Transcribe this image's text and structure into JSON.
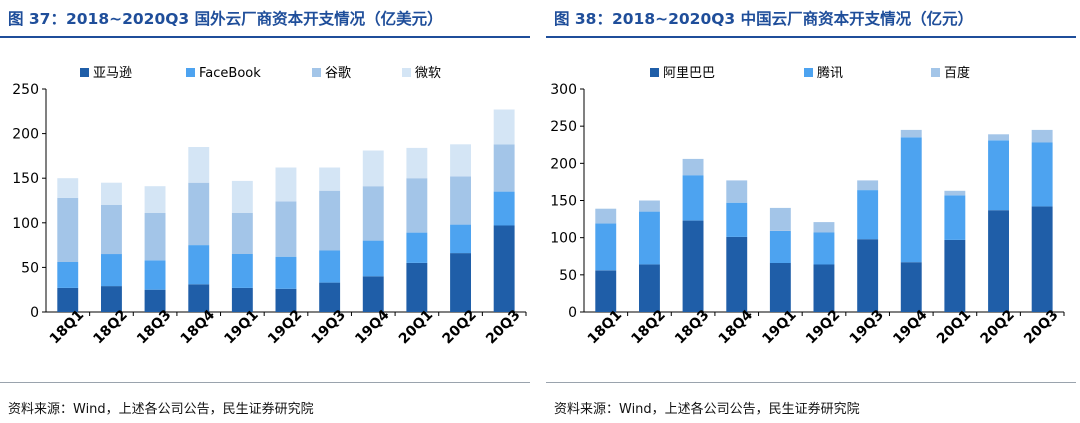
{
  "charts": [
    {
      "title": "图 37：2018~2020Q3 国外云厂商资本开支情况（亿美元）",
      "source": "资料来源：Wind，上述各公司公告，民生证券研究院",
      "chart_data": {
        "type": "bar",
        "stacked": true,
        "categories": [
          "18Q1",
          "18Q2",
          "18Q3",
          "18Q4",
          "19Q1",
          "19Q2",
          "19Q3",
          "19Q4",
          "20Q1",
          "20Q2",
          "20Q3"
        ],
        "series": [
          {
            "name": "亚马逊",
            "color": "#1f5ea8",
            "values": [
              27,
              29,
              25,
              31,
              27,
              26,
              33,
              40,
              55,
              66,
              97
            ]
          },
          {
            "name": "FaceBook",
            "color": "#4da3f0",
            "values": [
              29,
              36,
              33,
              44,
              38,
              36,
              36,
              40,
              34,
              32,
              38
            ]
          },
          {
            "name": "谷歌",
            "color": "#a3c5e8",
            "values": [
              72,
              55,
              53,
              70,
              46,
              62,
              67,
              61,
              61,
              54,
              53
            ]
          },
          {
            "name": "微软",
            "color": "#d4e5f5",
            "values": [
              22,
              25,
              30,
              40,
              36,
              38,
              26,
              40,
              34,
              36,
              39
            ]
          }
        ],
        "ylim": [
          0,
          250
        ],
        "yticks": [
          0,
          50,
          100,
          150,
          200,
          250
        ],
        "grid": false,
        "legend_position": "top"
      }
    },
    {
      "title": "图 38：2018~2020Q3 中国云厂商资本开支情况（亿元）",
      "source": "资料来源：Wind，上述各公司公告，民生证券研究院",
      "chart_data": {
        "type": "bar",
        "stacked": true,
        "categories": [
          "18Q1",
          "18Q2",
          "18Q3",
          "18Q4",
          "19Q1",
          "19Q2",
          "19Q3",
          "19Q4",
          "20Q1",
          "20Q2",
          "20Q3"
        ],
        "series": [
          {
            "name": "阿里巴巴",
            "color": "#1f5ea8",
            "values": [
              56,
              64,
              123,
              101,
              66,
              64,
              98,
              67,
              97,
              137,
              142
            ]
          },
          {
            "name": "腾讯",
            "color": "#4da3f0",
            "values": [
              63,
              71,
              61,
              46,
              43,
              43,
              66,
              168,
              60,
              94,
              86
            ]
          },
          {
            "name": "百度",
            "color": "#a3c5e8",
            "values": [
              20,
              15,
              22,
              30,
              31,
              14,
              13,
              10,
              6,
              8,
              17
            ]
          }
        ],
        "ylim": [
          0,
          300
        ],
        "yticks": [
          0,
          50,
          100,
          150,
          200,
          250,
          300
        ],
        "grid": false,
        "legend_position": "top"
      }
    }
  ]
}
